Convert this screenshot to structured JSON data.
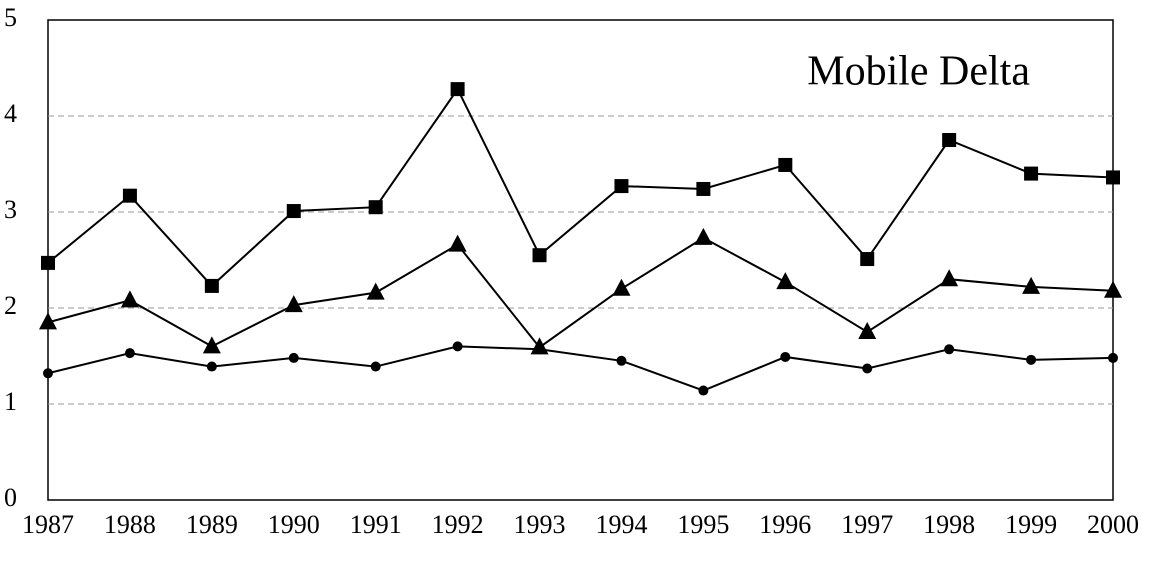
{
  "chart_data": {
    "type": "line",
    "title": "Mobile Delta",
    "categories": [
      "1987",
      "1988",
      "1989",
      "1990",
      "1991",
      "1992",
      "1993",
      "1994",
      "1995",
      "1996",
      "1997",
      "1998",
      "1999",
      "2000"
    ],
    "series": [
      {
        "color": "#000000",
        "marker": "square",
        "values": [
          2.47,
          3.17,
          2.23,
          3.01,
          3.05,
          4.28,
          2.55,
          3.27,
          3.24,
          3.49,
          2.51,
          3.75,
          3.4,
          3.36
        ]
      },
      {
        "color": "#000000",
        "marker": "triangle",
        "values": [
          1.85,
          2.08,
          1.6,
          2.03,
          2.16,
          2.66,
          1.59,
          2.2,
          2.73,
          2.27,
          1.75,
          2.3,
          2.22,
          2.18
        ]
      },
      {
        "color": "#000000",
        "marker": "circle",
        "values": [
          1.32,
          1.53,
          1.39,
          1.48,
          1.39,
          1.6,
          1.57,
          1.45,
          1.14,
          1.49,
          1.37,
          1.57,
          1.46,
          1.48
        ]
      }
    ],
    "ylim": [
      0,
      5
    ],
    "yticks": [
      0,
      1,
      2,
      3,
      4,
      5
    ],
    "grid": true
  }
}
